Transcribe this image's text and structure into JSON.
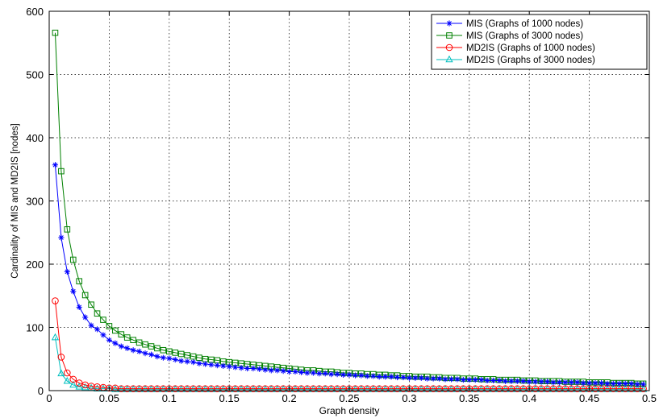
{
  "chart_data": {
    "type": "line",
    "title": "",
    "xlabel": "Graph density",
    "ylabel": "Cardinality of MIS and MD2IS [nodes]",
    "xlim": [
      0,
      0.5
    ],
    "ylim": [
      0,
      600
    ],
    "x_ticks": [
      "0",
      "0.05",
      "0.1",
      "0.15",
      "0.2",
      "0.25",
      "0.3",
      "0.35",
      "0.4",
      "0.45",
      "0.5"
    ],
    "y_ticks": [
      "0",
      "100",
      "200",
      "300",
      "400",
      "500",
      "600"
    ],
    "grid": true,
    "legend_position": "top-right",
    "x": [
      0.005,
      0.01,
      0.015,
      0.02,
      0.025,
      0.03,
      0.035,
      0.04,
      0.045,
      0.05,
      0.055,
      0.06,
      0.065,
      0.07,
      0.075,
      0.08,
      0.085,
      0.09,
      0.095,
      0.1,
      0.105,
      0.11,
      0.115,
      0.12,
      0.125,
      0.13,
      0.135,
      0.14,
      0.145,
      0.15,
      0.155,
      0.16,
      0.165,
      0.17,
      0.175,
      0.18,
      0.185,
      0.19,
      0.195,
      0.2,
      0.205,
      0.21,
      0.215,
      0.22,
      0.225,
      0.23,
      0.235,
      0.24,
      0.245,
      0.25,
      0.255,
      0.26,
      0.265,
      0.27,
      0.275,
      0.28,
      0.285,
      0.29,
      0.295,
      0.3,
      0.305,
      0.31,
      0.315,
      0.32,
      0.325,
      0.33,
      0.335,
      0.34,
      0.345,
      0.35,
      0.355,
      0.36,
      0.365,
      0.37,
      0.375,
      0.38,
      0.385,
      0.39,
      0.395,
      0.4,
      0.405,
      0.41,
      0.415,
      0.42,
      0.425,
      0.43,
      0.435,
      0.44,
      0.445,
      0.45,
      0.455,
      0.46,
      0.465,
      0.47,
      0.475,
      0.48,
      0.485,
      0.49,
      0.495
    ],
    "series": [
      {
        "name": "MIS (Graphs of 1000 nodes)",
        "color": "#0000ff",
        "marker": "asterisk",
        "values": [
          357,
          242,
          188,
          157,
          132,
          116,
          103,
          97,
          88,
          80,
          75,
          70,
          67,
          64,
          62,
          59,
          57,
          54,
          52,
          51,
          49,
          47,
          46,
          45,
          43,
          42,
          41,
          40,
          39,
          38,
          37,
          36,
          35,
          35,
          34,
          33,
          32,
          32,
          31,
          30,
          30,
          29,
          28,
          28,
          27,
          27,
          26,
          26,
          25,
          25,
          24,
          24,
          23,
          23,
          22,
          22,
          22,
          21,
          21,
          20,
          20,
          20,
          19,
          19,
          19,
          18,
          18,
          18,
          17,
          17,
          17,
          17,
          16,
          16,
          16,
          15,
          15,
          15,
          15,
          14,
          14,
          14,
          14,
          13,
          13,
          13,
          13,
          13,
          12,
          12,
          12,
          12,
          11,
          11,
          11,
          11,
          11,
          10,
          10
        ]
      },
      {
        "name": "MIS (Graphs of 3000 nodes)",
        "color": "#008000",
        "marker": "square",
        "values": [
          566,
          347,
          255,
          207,
          173,
          151,
          136,
          122,
          112,
          102,
          95,
          89,
          84,
          80,
          76,
          73,
          70,
          67,
          64,
          62,
          60,
          58,
          56,
          54,
          52,
          50,
          49,
          48,
          46,
          45,
          44,
          43,
          42,
          41,
          40,
          39,
          38,
          37,
          36,
          35,
          34,
          33,
          32,
          32,
          31,
          30,
          30,
          29,
          28,
          28,
          27,
          27,
          26,
          26,
          25,
          25,
          24,
          24,
          23,
          23,
          22,
          22,
          22,
          21,
          21,
          20,
          20,
          20,
          19,
          19,
          19,
          18,
          18,
          18,
          17,
          17,
          17,
          17,
          16,
          16,
          16,
          15,
          15,
          15,
          15,
          14,
          14,
          14,
          14,
          13,
          13,
          13,
          13,
          12,
          12,
          12,
          12,
          11,
          11
        ]
      },
      {
        "name": "MD2IS (Graphs of 1000 nodes)",
        "color": "#ff0000",
        "marker": "circle",
        "values": [
          142,
          53,
          28,
          18,
          12,
          9,
          7,
          6,
          5,
          4,
          4,
          3,
          3,
          3,
          3,
          3,
          3,
          3,
          3,
          3,
          3,
          3,
          3,
          3,
          3,
          3,
          3,
          3,
          3,
          3,
          3,
          3,
          3,
          3,
          3,
          3,
          3,
          3,
          3,
          3,
          3,
          3,
          3,
          3,
          3,
          3,
          3,
          3,
          3,
          3,
          3,
          3,
          3,
          3,
          3,
          3,
          3,
          3,
          3,
          3,
          3,
          3,
          3,
          3,
          3,
          3,
          3,
          3,
          3,
          3,
          3,
          3,
          3,
          3,
          3,
          3,
          3,
          3,
          3,
          3,
          3,
          3,
          3,
          3,
          3,
          3,
          3,
          3,
          3,
          3,
          3,
          3,
          3,
          3,
          3,
          3,
          3,
          3,
          3
        ]
      },
      {
        "name": "MD2IS (Graphs of 3000 nodes)",
        "color": "#00bfbf",
        "marker": "triangle",
        "values": [
          84,
          27,
          15,
          9,
          6,
          5,
          4,
          3,
          3,
          3,
          2,
          2,
          2,
          2,
          2,
          2,
          2,
          2,
          2,
          2,
          2,
          2,
          2,
          2,
          2,
          2,
          2,
          2,
          2,
          2,
          2,
          2,
          2,
          2,
          2,
          2,
          2,
          2,
          2,
          2,
          2,
          2,
          2,
          2,
          2,
          2,
          2,
          2,
          2,
          2,
          2,
          2,
          2,
          2,
          2,
          2,
          2,
          2,
          2,
          2,
          2,
          2,
          2,
          2,
          2,
          2,
          2,
          2,
          2,
          2,
          2,
          2,
          2,
          2,
          2,
          2,
          2,
          2,
          2,
          2,
          2,
          2,
          2,
          2,
          2,
          2,
          2,
          2,
          2,
          2,
          2,
          2,
          2,
          2,
          2,
          2,
          2,
          2,
          2
        ]
      }
    ]
  }
}
